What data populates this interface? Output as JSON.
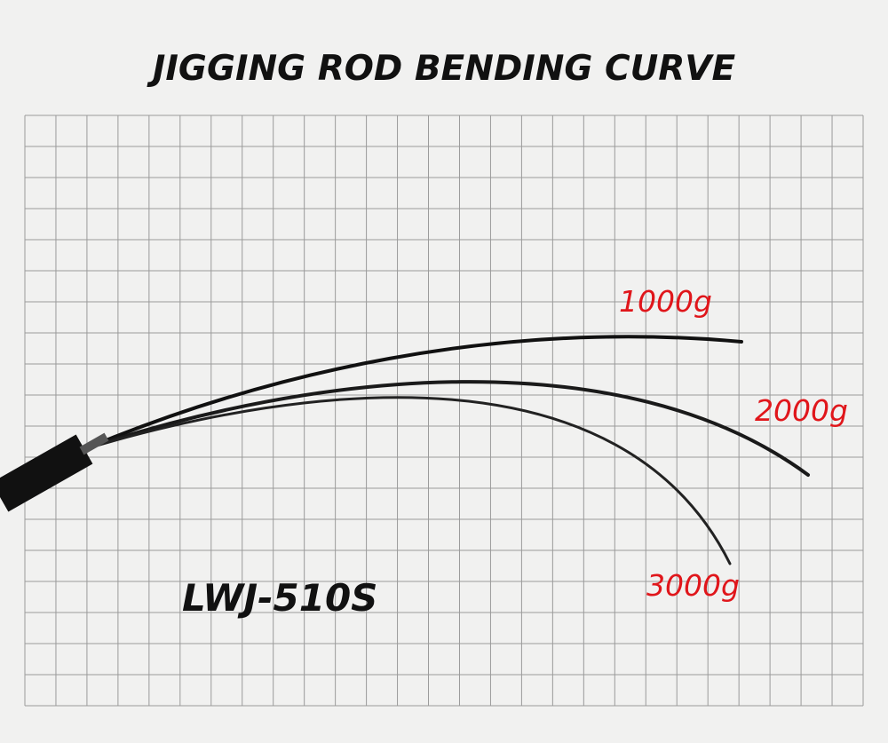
{
  "header": {
    "title": "JIGGING ROD BENDING CURVE"
  },
  "model": "LWJ-510S",
  "curves": [
    {
      "label": "1000g"
    },
    {
      "label": "2000g"
    },
    {
      "label": "3000g"
    }
  ]
}
